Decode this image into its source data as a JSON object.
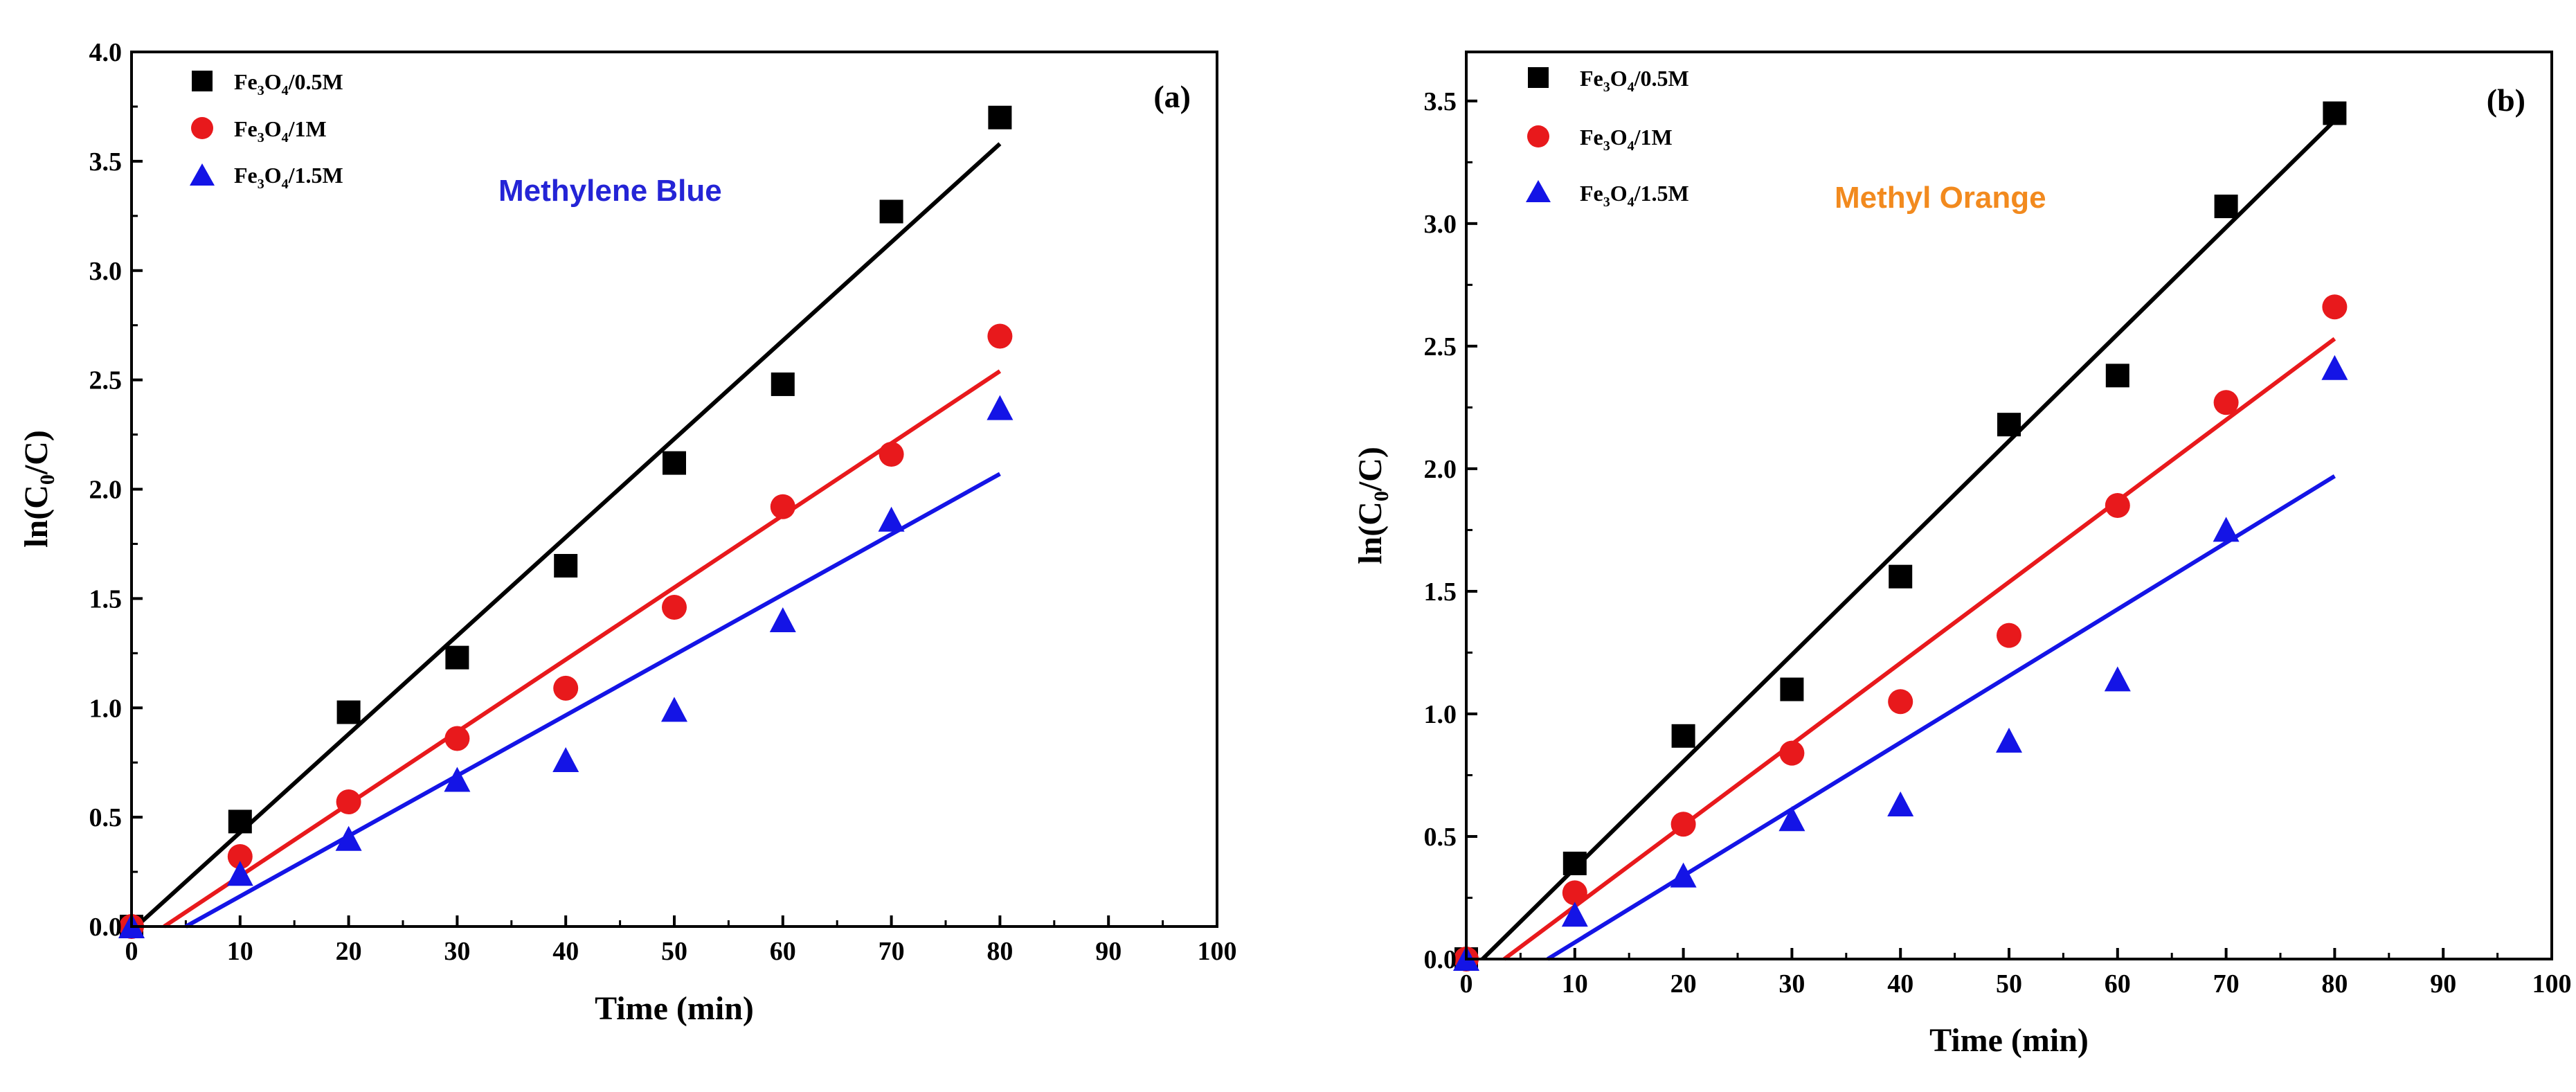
{
  "colors": {
    "series": [
      "#000000",
      "#e8191c",
      "#1414e6"
    ],
    "methylene_blue": "#2424d6",
    "methyl_orange": "#f28a1e"
  },
  "legend_parts": [
    {
      "a": "Fe",
      "b": "3",
      "c": "O",
      "d": "4",
      "e": "/0.5M"
    },
    {
      "a": "Fe",
      "b": "3",
      "c": "O",
      "d": "4",
      "e": "/1M"
    },
    {
      "a": "Fe",
      "b": "3",
      "c": "O",
      "d": "4",
      "e": "/1.5M"
    }
  ],
  "ylabel_parts": {
    "a": "ln(C",
    "b": "0",
    "c": "/C)"
  },
  "chart_data": [
    {
      "type": "scatter",
      "panel": "(a)",
      "title": "Methylene Blue",
      "xlabel": "Time (min)",
      "ylabel": "ln(C0/C)",
      "xlim": [
        0,
        100
      ],
      "ylim": [
        0,
        4.0
      ],
      "xticks": [
        0,
        10,
        20,
        30,
        40,
        50,
        60,
        70,
        80,
        90,
        100
      ],
      "yticks": [
        0.0,
        0.5,
        1.0,
        1.5,
        2.0,
        2.5,
        3.0,
        3.5,
        4.0
      ],
      "ytick_labels": [
        "0.0",
        "0.5",
        "1.0",
        "1.5",
        "2.0",
        "2.5",
        "3.0",
        "3.5",
        "4.0"
      ],
      "series": [
        {
          "name": "Fe3O4/0.5M",
          "marker": "square",
          "x": [
            0,
            10,
            20,
            30,
            40,
            50,
            60,
            70,
            80
          ],
          "values": [
            0,
            0.48,
            0.98,
            1.23,
            1.65,
            2.12,
            2.48,
            3.27,
            3.7
          ],
          "fit": [
            [
              0,
              -0.02
            ],
            [
              80,
              3.58
            ]
          ]
        },
        {
          "name": "Fe3O4/1M",
          "marker": "circle",
          "x": [
            0,
            10,
            20,
            30,
            40,
            50,
            60,
            70,
            80
          ],
          "values": [
            0,
            0.32,
            0.57,
            0.86,
            1.09,
            1.46,
            1.92,
            2.16,
            2.7
          ],
          "fit": [
            [
              3,
              0
            ],
            [
              80,
              2.54
            ]
          ]
        },
        {
          "name": "Fe3O4/1.5M",
          "marker": "triangle",
          "x": [
            0,
            10,
            20,
            30,
            40,
            50,
            60,
            70,
            80
          ],
          "values": [
            0,
            0.24,
            0.4,
            0.67,
            0.76,
            0.99,
            1.4,
            1.86,
            2.37
          ],
          "fit": [
            [
              5,
              0
            ],
            [
              80,
              2.07
            ]
          ]
        }
      ]
    },
    {
      "type": "scatter",
      "panel": "(b)",
      "title": "Methyl Orange",
      "xlabel": "Time (min)",
      "ylabel": "ln(C0/C)",
      "xlim": [
        0,
        100
      ],
      "ylim": [
        0,
        3.7
      ],
      "xticks": [
        0,
        10,
        20,
        30,
        40,
        50,
        60,
        70,
        80,
        90,
        100
      ],
      "yticks": [
        0.0,
        0.5,
        1.0,
        1.5,
        2.0,
        2.5,
        3.0,
        3.5
      ],
      "ytick_labels": [
        "0.0",
        "0.5",
        "1.0",
        "1.5",
        "2.0",
        "2.5",
        "3.0",
        "3.5"
      ],
      "series": [
        {
          "name": "Fe3O4/0.5M",
          "marker": "square",
          "x": [
            0,
            10,
            20,
            30,
            40,
            50,
            60,
            70,
            80
          ],
          "values": [
            0,
            0.39,
            0.91,
            1.1,
            1.56,
            2.18,
            2.38,
            3.07,
            3.45
          ],
          "fit": [
            [
              1.5,
              0
            ],
            [
              80,
              3.42
            ]
          ]
        },
        {
          "name": "Fe3O4/1M",
          "marker": "circle",
          "x": [
            0,
            10,
            20,
            30,
            40,
            50,
            60,
            70,
            80
          ],
          "values": [
            0,
            0.27,
            0.55,
            0.84,
            1.05,
            1.32,
            1.85,
            2.27,
            2.66
          ],
          "fit": [
            [
              3.5,
              0
            ],
            [
              80,
              2.53
            ]
          ]
        },
        {
          "name": "Fe3O4/1.5M",
          "marker": "triangle",
          "x": [
            0,
            10,
            20,
            30,
            40,
            50,
            60,
            70,
            80
          ],
          "values": [
            0,
            0.18,
            0.34,
            0.57,
            0.63,
            0.89,
            1.14,
            1.75,
            2.41
          ],
          "fit": [
            [
              7.5,
              0
            ],
            [
              80,
              1.97
            ]
          ]
        }
      ]
    }
  ]
}
